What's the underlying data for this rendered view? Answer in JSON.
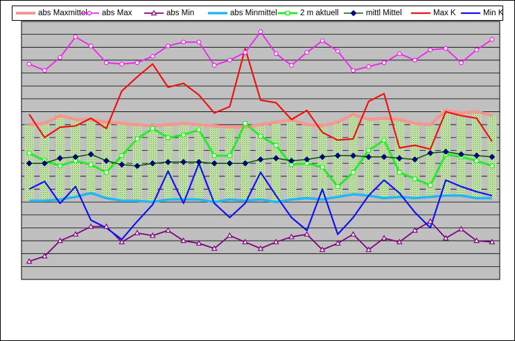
{
  "chart_data": {
    "type": "line",
    "title": "",
    "xlabel": "",
    "ylabel": "",
    "grid": true,
    "legend_placement": "top",
    "x": [
      1,
      2,
      3,
      4,
      5,
      6,
      7,
      8,
      9,
      10,
      11,
      12,
      13,
      14,
      15,
      16,
      17,
      18,
      19,
      20,
      21,
      22,
      23,
      24,
      25,
      26,
      27,
      28,
      29,
      30,
      31
    ],
    "ylim": [
      0,
      20
    ],
    "bars": {
      "bottom_series": "abs Minmittel",
      "top_series": "abs Maxmittel",
      "color": "#a8d880"
    },
    "series": [
      {
        "name": "abs Maxmittel",
        "color": "#f4988f",
        "marker": "none",
        "values": [
          12.0,
          12.1,
          12.7,
          12.4,
          12.4,
          12.2,
          12.1,
          12.0,
          11.9,
          12.0,
          12.1,
          12.0,
          11.9,
          11.8,
          11.8,
          12.0,
          12.2,
          12.4,
          12.0,
          11.9,
          12.2,
          12.8,
          12.4,
          12.5,
          12.4,
          12.1,
          12.0,
          13.1,
          12.9,
          13.0,
          12.7
        ]
      },
      {
        "name": "abs Max",
        "color": "#f020f0",
        "marker": "circle",
        "values": [
          16.7,
          16.2,
          17.2,
          18.8,
          18.1,
          16.8,
          16.7,
          16.8,
          17.3,
          18.1,
          18.4,
          18.4,
          16.6,
          17.0,
          17.6,
          19.2,
          17.5,
          16.6,
          17.6,
          18.5,
          17.7,
          16.2,
          16.5,
          16.8,
          17.5,
          17.0,
          17.8,
          17.9,
          16.8,
          17.8,
          18.6
        ]
      },
      {
        "name": "abs Min",
        "color": "#800080",
        "marker": "triangle",
        "values": [
          1.4,
          1.8,
          3.0,
          3.5,
          4.1,
          4.1,
          2.9,
          3.6,
          3.4,
          3.8,
          3.0,
          2.8,
          2.4,
          3.4,
          2.9,
          2.4,
          2.9,
          3.3,
          3.5,
          2.3,
          2.8,
          3.5,
          2.3,
          3.2,
          2.9,
          3.8,
          4.5,
          3.2,
          3.9,
          3.0,
          2.9
        ]
      },
      {
        "name": "abs Minmittel",
        "color": "#20b8f0",
        "marker": "none",
        "values": [
          6.1,
          6.1,
          6.2,
          6.4,
          6.7,
          6.3,
          6.1,
          6.1,
          6.0,
          6.2,
          6.2,
          6.2,
          6.0,
          6.2,
          6.1,
          6.2,
          6.0,
          6.2,
          6.3,
          6.2,
          6.4,
          6.6,
          6.5,
          6.3,
          6.4,
          6.3,
          6.4,
          6.5,
          6.5,
          6.3,
          6.3
        ]
      },
      {
        "name": "2 m aktuell",
        "color": "#20f020",
        "marker": "square",
        "values": [
          9.8,
          9.2,
          8.8,
          9.2,
          8.9,
          8.3,
          9.6,
          10.9,
          11.7,
          11.0,
          11.2,
          11.6,
          9.6,
          9.6,
          12.1,
          11.1,
          10.4,
          8.9,
          9.0,
          8.7,
          7.2,
          8.3,
          10.0,
          10.8,
          8.3,
          7.8,
          7.3,
          9.7,
          9.5,
          9.2,
          8.8
        ]
      },
      {
        "name": "mittl Mittel",
        "color": "#006000",
        "marker": "diamond",
        "values": [
          9.0,
          9.0,
          9.4,
          9.5,
          9.7,
          9.2,
          8.9,
          8.8,
          9.0,
          9.1,
          9.1,
          9.1,
          9.0,
          9.0,
          9.0,
          9.3,
          9.4,
          9.2,
          9.3,
          9.5,
          9.6,
          9.6,
          9.5,
          9.5,
          9.4,
          9.3,
          9.8,
          9.9,
          9.7,
          9.6,
          9.5
        ]
      },
      {
        "name": "Max K",
        "color": "#f01010",
        "marker": "none",
        "values": [
          12.8,
          11.0,
          11.8,
          11.9,
          12.5,
          11.7,
          14.6,
          15.7,
          16.7,
          14.9,
          15.2,
          14.3,
          12.9,
          13.4,
          17.9,
          13.9,
          13.7,
          12.4,
          13.1,
          11.4,
          10.8,
          10.9,
          13.8,
          14.4,
          10.2,
          10.4,
          10.1,
          13.0,
          12.7,
          12.5,
          10.7
        ]
      },
      {
        "name": "Min K",
        "color": "#1010f0",
        "marker": "none",
        "values": [
          7.0,
          7.6,
          5.9,
          7.2,
          4.6,
          4.0,
          3.1,
          4.5,
          5.8,
          8.4,
          5.9,
          9.0,
          5.9,
          4.8,
          5.9,
          8.3,
          6.5,
          4.8,
          3.8,
          7.0,
          3.5,
          4.8,
          6.5,
          7.7,
          6.7,
          5.2,
          4.0,
          7.7,
          7.2,
          6.8,
          6.5
        ]
      }
    ]
  }
}
